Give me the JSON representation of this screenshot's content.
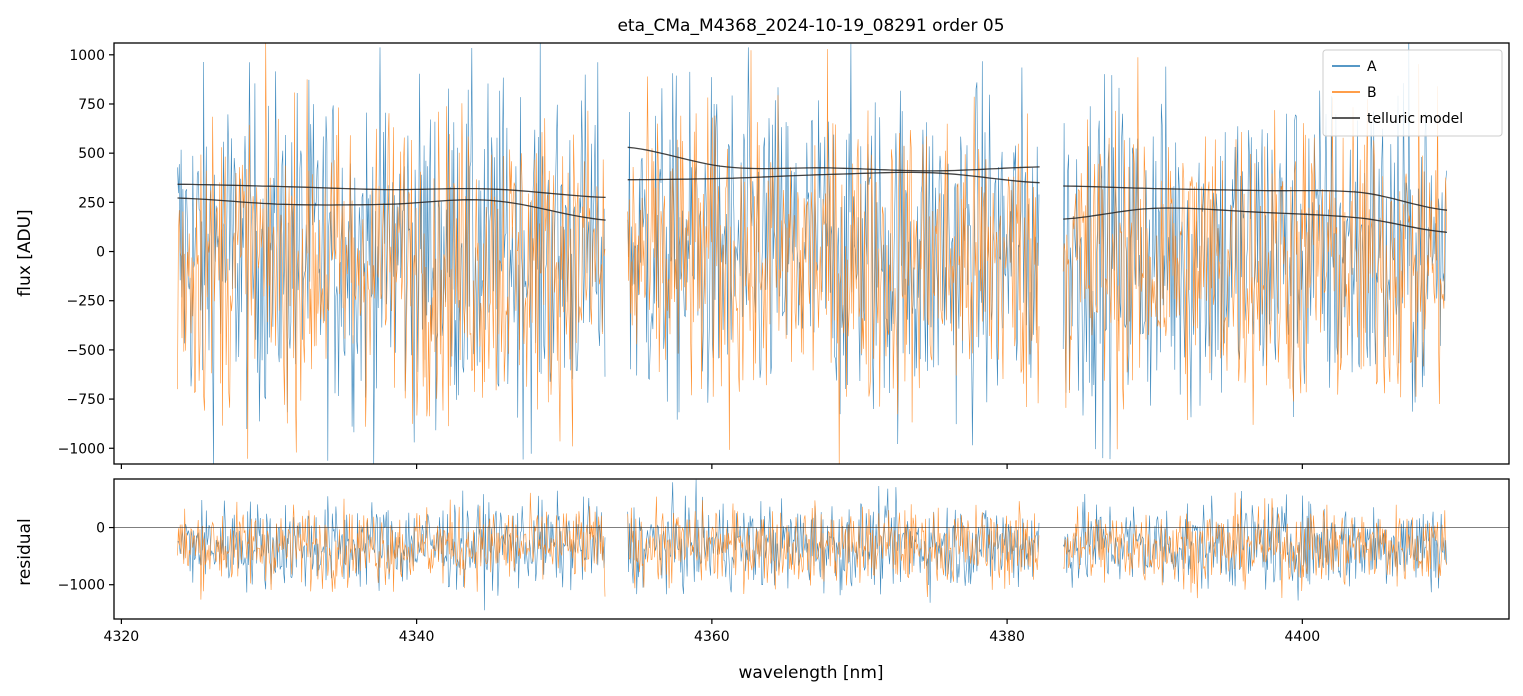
{
  "title": "eta_CMa_M4368_2024-10-19_08291  order 05",
  "colors": {
    "A": "#1f77b4",
    "B": "#ff7f0e",
    "model": "#222222",
    "axes": "#000000"
  },
  "chart_data": [
    {
      "type": "line",
      "panel": "main",
      "title": "eta_CMa_M4368_2024-10-19_08291  order 05",
      "xlabel": "",
      "ylabel": "flux [ADU]",
      "xlim": [
        4319.5,
        4414.0
      ],
      "ylim": [
        -1080,
        1060
      ],
      "xticks": [
        4320,
        4340,
        4360,
        4380,
        4400
      ],
      "yticks": [
        -1000,
        -750,
        -500,
        -250,
        0,
        250,
        500,
        750,
        1000
      ],
      "ytick_labels": [
        "−1000",
        "−750",
        "−500",
        "−250",
        "0",
        "250",
        "500",
        "750",
        "1000"
      ],
      "grid": false,
      "legend": {
        "placement": "top-right",
        "entries": [
          "A",
          "B",
          "telluric model"
        ]
      },
      "segments": [
        {
          "x_start": 4323.8,
          "x_end": 4352.8
        },
        {
          "x_start": 4354.3,
          "x_end": 4382.2
        },
        {
          "x_start": 4383.8,
          "x_end": 4409.8
        }
      ],
      "series": [
        {
          "name": "A",
          "color": "#1f77b4",
          "noise_mean": 0,
          "noise_sigma": 420
        },
        {
          "name": "B",
          "color": "#ff7f0e",
          "noise_mean": -50,
          "noise_sigma": 380
        },
        {
          "name": "telluric model",
          "color": "#222222",
          "curves": [
            {
              "segment": 0,
              "x": [
                4323.8,
                4331,
                4338,
                4345,
                4352.8
              ],
              "y": [
                342,
                330,
                315,
                318,
                275
              ]
            },
            {
              "segment": 0,
              "x": [
                4323.8,
                4331,
                4338,
                4345,
                4352.8
              ],
              "y": [
                272,
                240,
                240,
                260,
                160
              ]
            },
            {
              "segment": 1,
              "x": [
                4354.3,
                4361,
                4368,
                4375,
                4382.2
              ],
              "y": [
                530,
                430,
                425,
                410,
                430
              ]
            },
            {
              "segment": 1,
              "x": [
                4354.3,
                4361,
                4368,
                4375,
                4382.2
              ],
              "y": [
                365,
                372,
                392,
                400,
                350
              ]
            },
            {
              "segment": 2,
              "x": [
                4383.8,
                4390,
                4397,
                4404,
                4409.8
              ],
              "y": [
                333,
                320,
                310,
                300,
                210
              ]
            },
            {
              "segment": 2,
              "x": [
                4383.8,
                4390,
                4397,
                4404,
                4409.8
              ],
              "y": [
                165,
                220,
                200,
                170,
                98
              ]
            }
          ]
        }
      ]
    },
    {
      "type": "line",
      "panel": "residual",
      "title": "",
      "xlabel": "wavelength [nm]",
      "ylabel": "residual",
      "xlim": [
        4319.5,
        4414.0
      ],
      "ylim": [
        -1600,
        850
      ],
      "xticks": [
        4320,
        4340,
        4360,
        4380,
        4400
      ],
      "xtick_labels": [
        "4320",
        "4340",
        "4360",
        "4380",
        "4400"
      ],
      "yticks": [
        -1000,
        0
      ],
      "ytick_labels": [
        "−1000",
        "0"
      ],
      "zero_line": 0,
      "grid": false,
      "series": [
        {
          "name": "A",
          "color": "#1f77b4",
          "noise_mean": -300,
          "noise_sigma": 380
        },
        {
          "name": "B",
          "color": "#ff7f0e",
          "noise_mean": -320,
          "noise_sigma": 340
        }
      ]
    }
  ]
}
